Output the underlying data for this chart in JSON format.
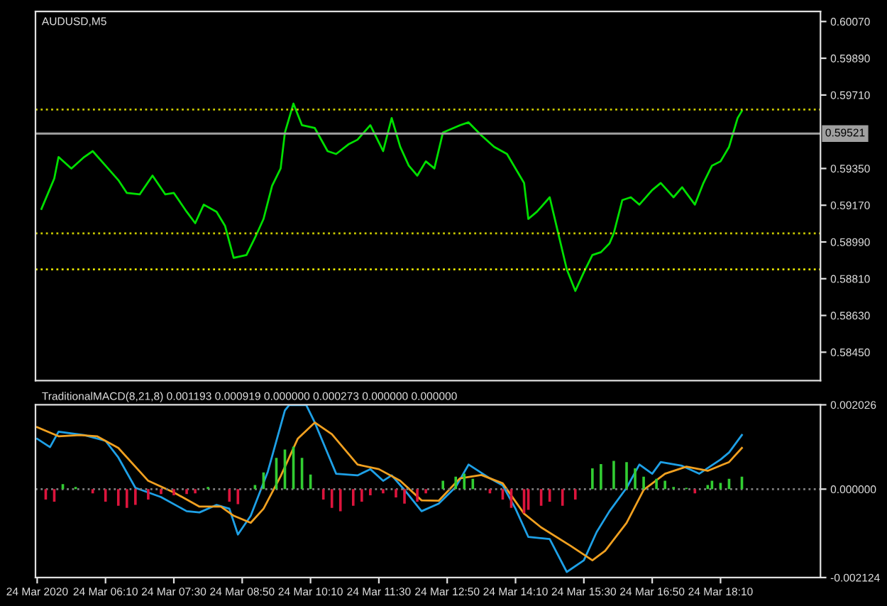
{
  "chart_data": [
    {
      "type": "line",
      "title": "AUDUSD,M5",
      "tick_labels": "y",
      "grid": false,
      "legend": false,
      "xlim": [
        "2020-03-24T04:48",
        "2020-03-24T20:07"
      ],
      "ylim": [
        0.58311,
        0.60119
      ],
      "yticks": [
        {
          "value": 0.6007,
          "label": "0.60070"
        },
        {
          "value": 0.5989,
          "label": "0.59890"
        },
        {
          "value": 0.5971,
          "label": "0.59710"
        },
        {
          "value": 0.5935,
          "label": "0.59350"
        },
        {
          "value": 0.5917,
          "label": "0.59170"
        },
        {
          "value": 0.5899,
          "label": "0.58990"
        },
        {
          "value": 0.5881,
          "label": "0.58810"
        },
        {
          "value": 0.5863,
          "label": "0.58630"
        },
        {
          "value": 0.5845,
          "label": "0.58450"
        }
      ],
      "ref_lines": [
        {
          "axis": "y",
          "value": 0.59521,
          "label": "0.59521",
          "color": "#a0a0a0",
          "line_style": "solid"
        },
        {
          "axis": "y",
          "value": 0.59639,
          "color": "#c8c800",
          "line_style": "dotted"
        },
        {
          "axis": "y",
          "value": 0.59032,
          "color": "#c8c800",
          "line_style": "dotted"
        },
        {
          "axis": "y",
          "value": 0.58856,
          "color": "#e6e600",
          "line_style": "dotted"
        }
      ],
      "series": [
        {
          "color": "#00e000",
          "x": [
            "2020-03-24T04:55",
            "2020-03-24T05:10",
            "2020-03-24T05:15",
            "2020-03-24T05:30",
            "2020-03-24T05:45",
            "2020-03-24T05:55",
            "2020-03-24T06:10",
            "2020-03-24T06:25",
            "2020-03-24T06:35",
            "2020-03-24T06:50",
            "2020-03-24T07:05",
            "2020-03-24T07:20",
            "2020-03-24T07:30",
            "2020-03-24T07:45",
            "2020-03-24T07:55",
            "2020-03-24T08:05",
            "2020-03-24T08:20",
            "2020-03-24T08:30",
            "2020-03-24T08:40",
            "2020-03-24T08:55",
            "2020-03-24T09:05",
            "2020-03-24T09:15",
            "2020-03-24T09:25",
            "2020-03-24T09:35",
            "2020-03-24T09:40",
            "2020-03-24T09:50",
            "2020-03-24T10:00",
            "2020-03-24T10:15",
            "2020-03-24T10:30",
            "2020-03-24T10:40",
            "2020-03-24T10:55",
            "2020-03-24T11:05",
            "2020-03-24T11:20",
            "2020-03-24T11:35",
            "2020-03-24T11:45",
            "2020-03-24T11:55",
            "2020-03-24T12:05",
            "2020-03-24T12:15",
            "2020-03-24T12:25",
            "2020-03-24T12:35",
            "2020-03-24T12:45",
            "2020-03-24T13:05",
            "2020-03-24T13:15",
            "2020-03-24T13:30",
            "2020-03-24T13:45",
            "2020-03-24T14:00",
            "2020-03-24T14:10",
            "2020-03-24T14:20",
            "2020-03-24T14:25",
            "2020-03-24T14:35",
            "2020-03-24T14:50",
            "2020-03-24T15:00",
            "2020-03-24T15:10",
            "2020-03-24T15:20",
            "2020-03-24T15:30",
            "2020-03-24T15:40",
            "2020-03-24T15:50",
            "2020-03-24T16:00",
            "2020-03-24T16:05",
            "2020-03-24T16:15",
            "2020-03-24T16:25",
            "2020-03-24T16:35",
            "2020-03-24T16:50",
            "2020-03-24T17:00",
            "2020-03-24T17:15",
            "2020-03-24T17:25",
            "2020-03-24T17:40",
            "2020-03-24T17:50",
            "2020-03-24T18:00",
            "2020-03-24T18:10",
            "2020-03-24T18:20",
            "2020-03-24T18:30",
            "2020-03-24T18:35"
          ],
          "values": [
            0.59152,
            0.59301,
            0.59406,
            0.5935,
            0.59406,
            0.59435,
            0.59364,
            0.59293,
            0.5923,
            0.59223,
            0.59315,
            0.59223,
            0.5923,
            0.59138,
            0.59082,
            0.59173,
            0.59138,
            0.59068,
            0.58912,
            0.58926,
            0.59011,
            0.59103,
            0.59265,
            0.5935,
            0.59526,
            0.59668,
            0.59562,
            0.59548,
            0.59435,
            0.59421,
            0.5947,
            0.59491,
            0.59562,
            0.59435,
            0.59597,
            0.59456,
            0.59364,
            0.59315,
            0.59385,
            0.5935,
            0.59526,
            0.59562,
            0.59576,
            0.59512,
            0.59456,
            0.59421,
            0.5935,
            0.59279,
            0.59103,
            0.59138,
            0.59209,
            0.59032,
            0.58856,
            0.5875,
            0.58842,
            0.58926,
            0.5894,
            0.58983,
            0.59032,
            0.59195,
            0.59209,
            0.59173,
            0.59244,
            0.59279,
            0.59209,
            0.59258,
            0.59173,
            0.59279,
            0.59364,
            0.59385,
            0.59456,
            0.59597,
            0.59632
          ]
        }
      ]
    },
    {
      "type": "line",
      "title": "TraditionalMACD(8,21,8) 0.001193 0.000919 0.000000 0.000273 0.000000 0.000000",
      "grid": false,
      "legend": false,
      "xlim": [
        "2020-03-24T04:48",
        "2020-03-24T20:07"
      ],
      "ylim": [
        -0.002124,
        0.002026
      ],
      "xticks": [
        {
          "value": "2020-03-24T04:50",
          "label": "24 Mar 2020"
        },
        {
          "value": "2020-03-24T06:10",
          "label": "24 Mar 06:10"
        },
        {
          "value": "2020-03-24T07:30",
          "label": "24 Mar 07:30"
        },
        {
          "value": "2020-03-24T08:50",
          "label": "24 Mar 08:50"
        },
        {
          "value": "2020-03-24T10:10",
          "label": "24 Mar 10:10"
        },
        {
          "value": "2020-03-24T11:30",
          "label": "24 Mar 11:30"
        },
        {
          "value": "2020-03-24T12:50",
          "label": "24 Mar 12:50"
        },
        {
          "value": "2020-03-24T14:10",
          "label": "24 Mar 14:10"
        },
        {
          "value": "2020-03-24T15:30",
          "label": "24 Mar 15:30"
        },
        {
          "value": "2020-03-24T16:50",
          "label": "24 Mar 16:50"
        },
        {
          "value": "2020-03-24T18:10",
          "label": "24 Mar 18:10"
        }
      ],
      "yticks": [
        {
          "value": 0.002026,
          "label": "0.002026"
        },
        {
          "value": 0,
          "label": "0.000000"
        },
        {
          "value": -0.002124,
          "label": "-0.002124"
        }
      ],
      "ref_lines": [
        {
          "axis": "y",
          "value": 0,
          "color": "#808080",
          "line_style": "dotted"
        }
      ],
      "series": [
        {
          "type": "bar",
          "color": "#32cd32",
          "x": [
            "2020-03-24T05:20",
            "2020-03-24T05:35",
            "2020-03-24T08:10",
            "2020-03-24T09:05",
            "2020-03-24T09:15",
            "2020-03-24T09:30",
            "2020-03-24T09:40",
            "2020-03-24T09:50",
            "2020-03-24T10:00",
            "2020-03-24T10:10",
            "2020-03-24T12:45",
            "2020-03-24T13:00",
            "2020-03-24T13:10",
            "2020-03-24T13:20",
            "2020-03-24T15:40",
            "2020-03-24T15:50",
            "2020-03-24T16:05",
            "2020-03-24T16:20",
            "2020-03-24T16:30",
            "2020-03-24T16:40",
            "2020-03-24T16:55",
            "2020-03-24T17:05",
            "2020-03-24T17:15",
            "2020-03-24T17:30",
            "2020-03-24T17:55",
            "2020-03-24T18:00",
            "2020-03-24T18:10",
            "2020-03-24T18:20",
            "2020-03-24T18:35"
          ],
          "values": [
            0.00012,
            5e-05,
            5e-05,
            0.0001,
            0.0004,
            0.00075,
            0.00095,
            0.00102,
            0.00075,
            0.00035,
            0.0002,
            0.0003,
            0.00037,
            0.00025,
            0.0005,
            0.0006,
            0.00068,
            0.00065,
            0.0005,
            0.0003,
            0.00025,
            0.0002,
            5e-05,
            3e-05,
            0.0001,
            0.0002,
            0.00015,
            0.00025,
            0.0003
          ]
        },
        {
          "type": "bar",
          "color": "#dc143c",
          "x": [
            "2020-03-24T05:00",
            "2020-03-24T05:10",
            "2020-03-24T05:55",
            "2020-03-24T06:10",
            "2020-03-24T06:25",
            "2020-03-24T06:35",
            "2020-03-24T06:45",
            "2020-03-24T07:00",
            "2020-03-24T07:15",
            "2020-03-24T07:30",
            "2020-03-24T07:45",
            "2020-03-24T07:55",
            "2020-03-24T08:35",
            "2020-03-24T08:45",
            "2020-03-24T10:25",
            "2020-03-24T10:35",
            "2020-03-24T10:45",
            "2020-03-24T11:00",
            "2020-03-24T11:10",
            "2020-03-24T11:20",
            "2020-03-24T11:35",
            "2020-03-24T11:50",
            "2020-03-24T12:00",
            "2020-03-24T12:15",
            "2020-03-24T12:25",
            "2020-03-24T13:40",
            "2020-03-24T13:55",
            "2020-03-24T14:05",
            "2020-03-24T14:20",
            "2020-03-24T14:25",
            "2020-03-24T14:40",
            "2020-03-24T14:50",
            "2020-03-24T15:05",
            "2020-03-24T15:20",
            "2020-03-24T17:40"
          ],
          "values": [
            -0.00025,
            -0.0003,
            -0.0001,
            -0.0003,
            -0.0004,
            -0.00045,
            -0.00038,
            -0.00025,
            -0.00012,
            -0.00015,
            -0.00012,
            -0.0001,
            -0.0003,
            -0.00036,
            -0.00025,
            -0.00045,
            -0.00053,
            -0.0004,
            -0.0003,
            -0.00015,
            -0.0001,
            -0.0002,
            -0.00035,
            -0.0003,
            -0.0001,
            -0.0001,
            -0.00025,
            -0.00045,
            -0.00058,
            -0.0005,
            -0.0004,
            -0.0003,
            -0.0004,
            -0.00025,
            -0.0001
          ]
        },
        {
          "color": "#1ea0e6",
          "x": [
            "2020-03-24T04:50",
            "2020-03-24T05:05",
            "2020-03-24T05:15",
            "2020-03-24T05:45",
            "2020-03-24T06:10",
            "2020-03-24T06:25",
            "2020-03-24T06:45",
            "2020-03-24T07:15",
            "2020-03-24T07:45",
            "2020-03-24T08:00",
            "2020-03-24T08:20",
            "2020-03-24T08:35",
            "2020-03-24T08:45",
            "2020-03-24T09:00",
            "2020-03-24T09:20",
            "2020-03-24T09:40",
            "2020-03-24T09:45",
            "2020-03-24T10:05",
            "2020-03-24T10:15",
            "2020-03-24T10:40",
            "2020-03-24T11:05",
            "2020-03-24T11:20",
            "2020-03-24T11:35",
            "2020-03-24T11:45",
            "2020-03-24T12:00",
            "2020-03-24T12:20",
            "2020-03-24T12:40",
            "2020-03-24T13:00",
            "2020-03-24T13:15",
            "2020-03-24T13:40",
            "2020-03-24T13:55",
            "2020-03-24T14:10",
            "2020-03-24T14:25",
            "2020-03-24T14:50",
            "2020-03-24T15:10",
            "2020-03-24T15:30",
            "2020-03-24T15:45",
            "2020-03-24T16:00",
            "2020-03-24T16:20",
            "2020-03-24T16:35",
            "2020-03-24T16:50",
            "2020-03-24T17:00",
            "2020-03-24T17:25",
            "2020-03-24T17:45",
            "2020-03-24T18:10",
            "2020-03-24T18:20",
            "2020-03-24T18:35"
          ],
          "values": [
            0.00121,
            0.00101,
            0.00138,
            0.0013,
            0.00116,
            0.00076,
            3e-05,
            -0.00019,
            -0.00053,
            -0.00056,
            -0.00038,
            -0.00047,
            -0.00109,
            -0.00064,
            0.00042,
            0.00189,
            0.00202,
            0.00202,
            0.0016,
            0.00037,
            0.00033,
            0.00048,
            0.0002,
            0.00033,
            -2e-05,
            -0.00053,
            -0.00035,
            5e-05,
            0.00059,
            0.00026,
            9e-05,
            -0.00047,
            -0.00115,
            -0.0012,
            -0.00199,
            -0.00171,
            -0.00103,
            -0.00053,
            3e-05,
            0.00059,
            0.00037,
            0.00065,
            0.00056,
            0.00037,
            0.00071,
            0.00088,
            0.0013
          ]
        },
        {
          "color": "#f0a020",
          "x": [
            "2020-03-24T04:50",
            "2020-03-24T05:15",
            "2020-03-24T05:40",
            "2020-03-24T06:00",
            "2020-03-24T06:25",
            "2020-03-24T07:00",
            "2020-03-24T07:30",
            "2020-03-24T08:00",
            "2020-03-24T08:25",
            "2020-03-24T08:40",
            "2020-03-24T09:00",
            "2020-03-24T09:15",
            "2020-03-24T09:35",
            "2020-03-24T09:55",
            "2020-03-24T10:15",
            "2020-03-24T10:35",
            "2020-03-24T11:05",
            "2020-03-24T11:30",
            "2020-03-24T11:55",
            "2020-03-24T12:20",
            "2020-03-24T12:40",
            "2020-03-24T13:05",
            "2020-03-24T13:30",
            "2020-03-24T13:55",
            "2020-03-24T14:20",
            "2020-03-24T14:40",
            "2020-03-24T15:15",
            "2020-03-24T15:40",
            "2020-03-24T15:55",
            "2020-03-24T16:20",
            "2020-03-24T16:40",
            "2020-03-24T17:05",
            "2020-03-24T17:30",
            "2020-03-24T17:55",
            "2020-03-24T18:20",
            "2020-03-24T18:35"
          ],
          "values": [
            0.00149,
            0.00127,
            0.0013,
            0.00127,
            0.00099,
            0.0002,
            -8e-05,
            -0.00042,
            -0.00042,
            -0.00064,
            -0.00081,
            -0.00047,
            0.00031,
            0.00121,
            0.0016,
            0.00132,
            0.00059,
            0.00048,
            0.0002,
            -0.00027,
            -0.00028,
            0.00026,
            0.00034,
            0.00014,
            -0.00059,
            -0.00092,
            -0.00137,
            -0.00171,
            -0.00148,
            -0.00081,
            -2e-05,
            0.00037,
            0.00054,
            0.00044,
            0.00065,
            0.00099
          ]
        }
      ]
    }
  ]
}
